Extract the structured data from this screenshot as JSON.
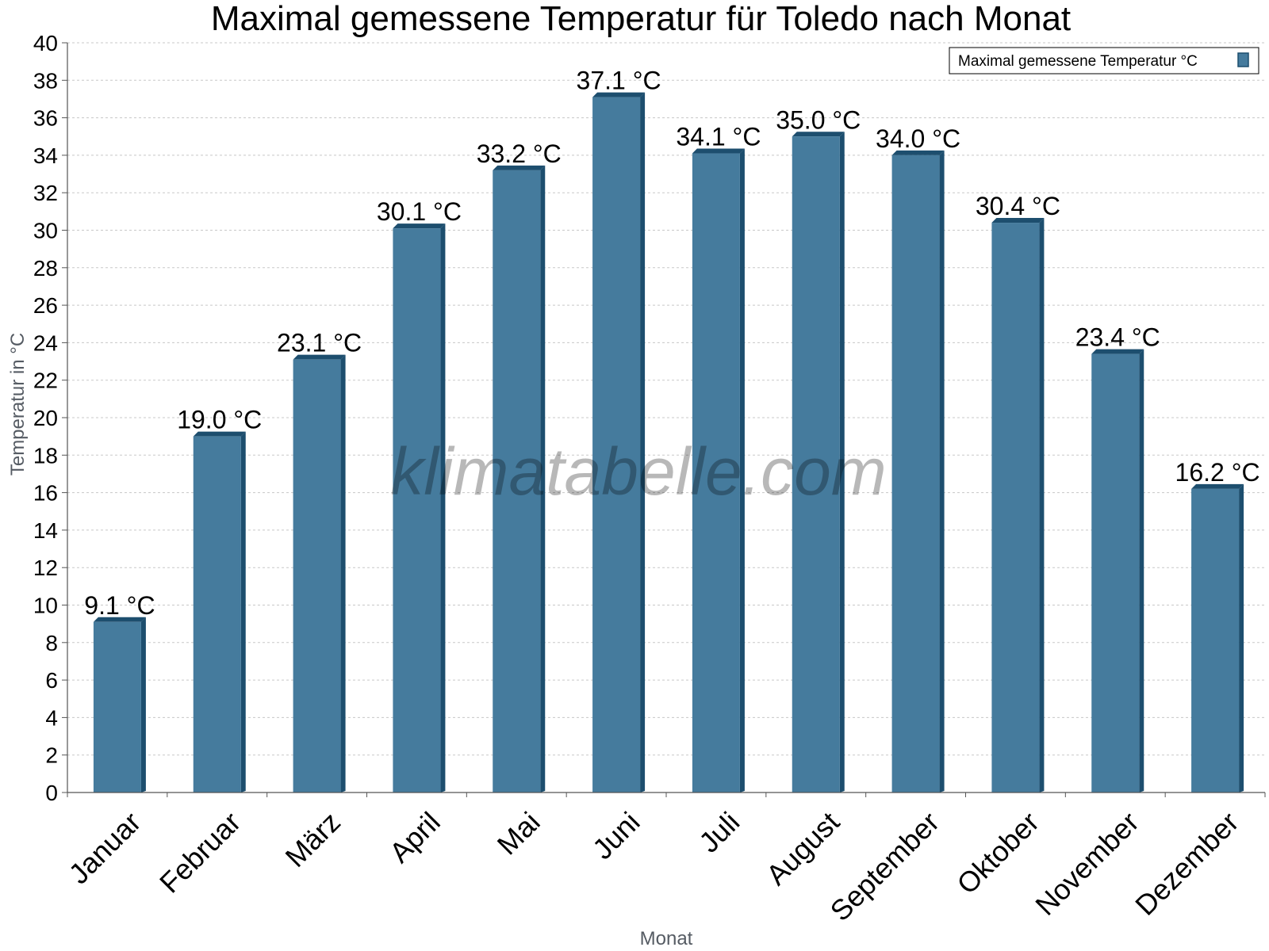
{
  "chart_data": {
    "type": "bar",
    "title": "Maximal gemessene Temperatur für Toledo nach Monat",
    "xlabel": "Monat",
    "ylabel": "Temperatur in °C",
    "ylim": [
      0,
      40
    ],
    "ytick_step": 2,
    "grid": true,
    "legend_position": "top-right",
    "categories": [
      "Januar",
      "Februar",
      "März",
      "April",
      "Mai",
      "Juni",
      "Juli",
      "August",
      "September",
      "Oktober",
      "November",
      "Dezember"
    ],
    "series": [
      {
        "name": "Maximal gemessene Temperatur °C",
        "values": [
          9.1,
          19.0,
          23.1,
          30.1,
          33.2,
          37.1,
          34.1,
          35.0,
          34.0,
          30.4,
          23.4,
          16.2
        ],
        "labels": [
          "9.1 °C",
          "19.0 °C",
          "23.1 °C",
          "30.1 °C",
          "33.2 °C",
          "37.1 °C",
          "34.1 °C",
          "35.0 °C",
          "34.0 °C",
          "30.4 °C",
          "23.4 °C",
          "16.2 °C"
        ]
      }
    ]
  },
  "watermark": "klimatabelle.com",
  "colors": {
    "bar_fill": "#457b9d",
    "bar_shade": "#1d4e6e",
    "grid": "#c8c8c8",
    "axis": "#555555"
  }
}
